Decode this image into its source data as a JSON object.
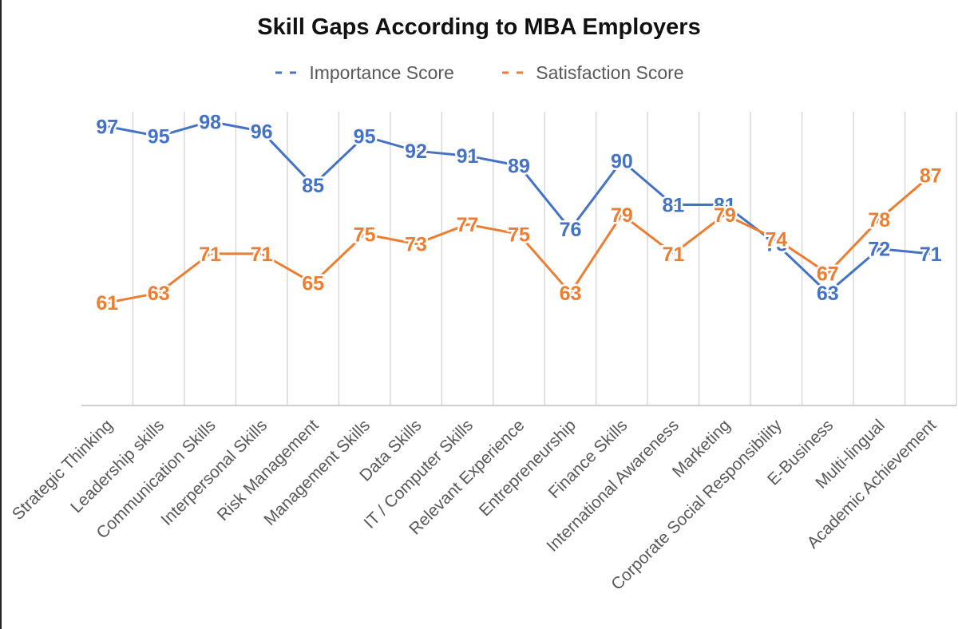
{
  "chart_data": {
    "type": "line",
    "title": "Skill Gaps According to MBA Employers",
    "categories": [
      "Strategic Thinking",
      "Leadership skills",
      "Communication Skills",
      "Interpersonal Skills",
      "Risk Management",
      "Management Skills",
      "Data Skills",
      "IT / Computer Skills",
      "Relevant Experience",
      "Entrepreneurship",
      "Finance Skills",
      "International Awareness",
      "Marketing",
      "Corporate Social Responsibility",
      "E-Business",
      "Multi-lingual",
      "Academic Achievement"
    ],
    "series": [
      {
        "name": "Importance Score",
        "color": "#4472C4",
        "values": [
          97,
          95,
          98,
          96,
          85,
          95,
          92,
          91,
          89,
          76,
          90,
          81,
          81,
          73,
          63,
          72,
          71
        ]
      },
      {
        "name": "Satisfaction Score",
        "color": "#ED7D31",
        "values": [
          61,
          63,
          71,
          71,
          65,
          75,
          73,
          77,
          75,
          63,
          79,
          71,
          79,
          74,
          67,
          78,
          87
        ]
      }
    ],
    "ylim": [
      40,
      100
    ],
    "grid": "vertical",
    "legend_position": "top"
  }
}
